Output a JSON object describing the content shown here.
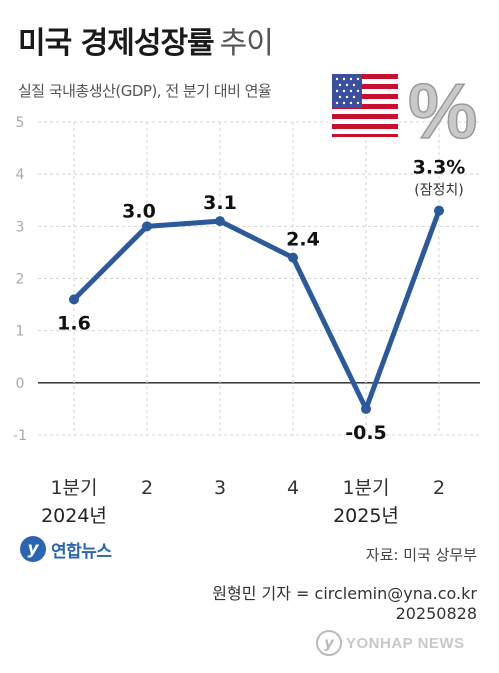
{
  "header": {
    "title": "미국 경제성장률",
    "title_suffix": "추이",
    "subtitle": "실질 국내총생산(GDP), 전 분기 대비 연율"
  },
  "decor": {
    "flag_icon": "us-flag-icon",
    "percent_icon": "percent-symbol-icon",
    "percent_text": "%"
  },
  "chart_data": {
    "type": "line",
    "title": "미국 경제성장률 추이",
    "subtitle": "실질 국내총생산(GDP), 전 분기 대비 연율",
    "categories": [
      "1분기",
      "2",
      "3",
      "4",
      "1분기",
      "2"
    ],
    "years": [
      {
        "label": "2024년",
        "start": 0,
        "end": 3
      },
      {
        "label": "2025년",
        "start": 4,
        "end": 5
      }
    ],
    "values": [
      1.6,
      3.0,
      3.1,
      2.4,
      -0.5,
      3.3
    ],
    "data_labels": [
      "1.6",
      "3.0",
      "3.1",
      "2.4",
      "-0.5",
      "3.3%"
    ],
    "annotation": {
      "index": 5,
      "text": "(잠정치)"
    },
    "ylim": [
      -1,
      5
    ],
    "yticks": [
      5,
      4,
      3,
      2,
      1,
      0,
      -1
    ],
    "ytick_labels": [
      "5",
      "4",
      "3",
      "2",
      "1",
      "0",
      "-1"
    ],
    "xlabel": "",
    "ylabel": "",
    "grid": true,
    "line_color": "#2a5a9c"
  },
  "footer": {
    "logo_text": "연합뉴스",
    "source": "자료: 미국 상무부",
    "credit_line1": "원형민 기자 = circlemin@yna.co.kr",
    "credit_line2": "20250828",
    "watermark": "YONHAP NEWS"
  }
}
